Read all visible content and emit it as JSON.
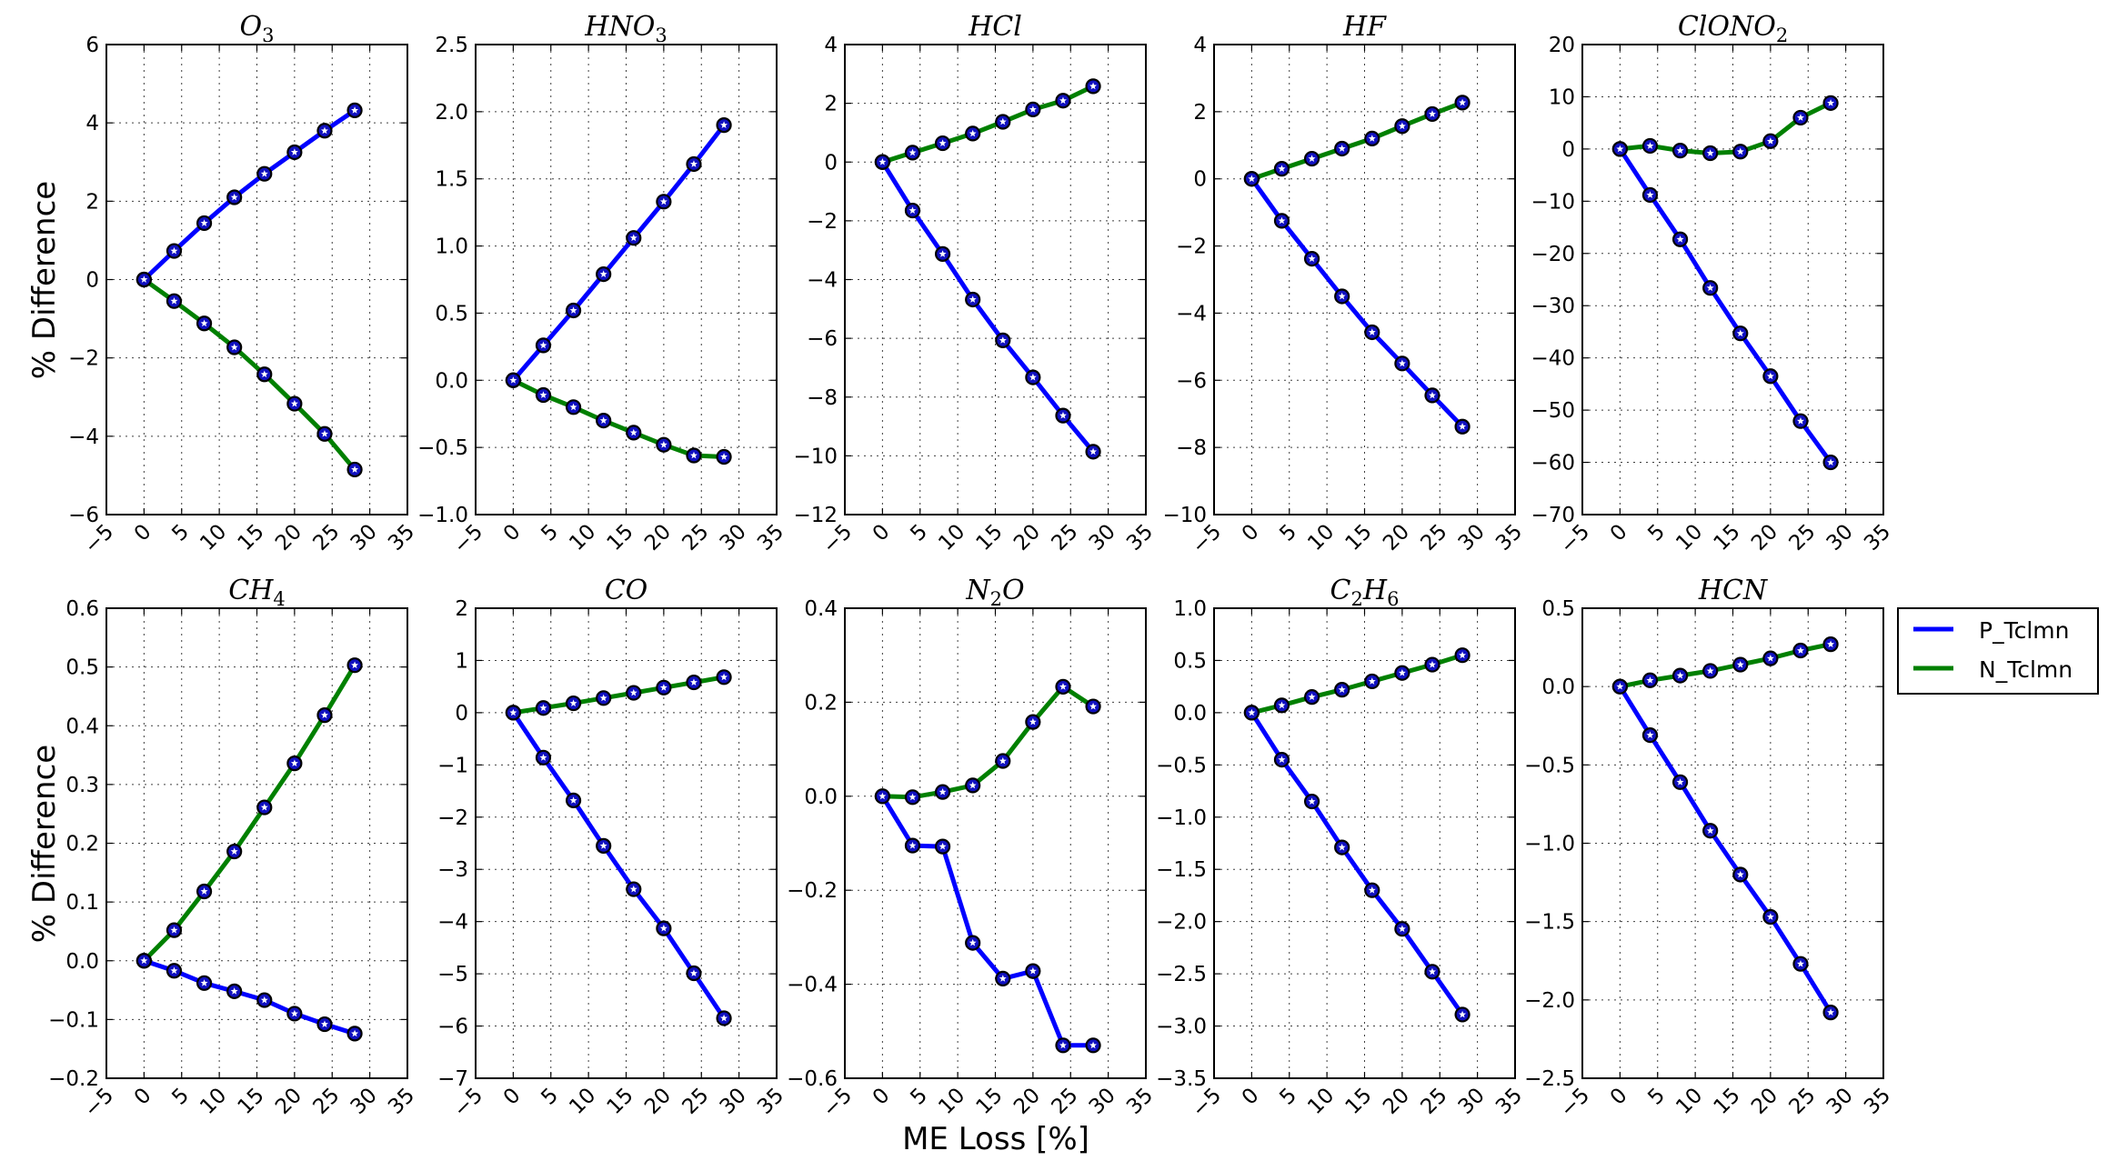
{
  "figure": {
    "ylabel": "% Difference",
    "xlabel": "ME Loss [%]",
    "legend": [
      {
        "label": "P_Tclmn",
        "color": "#0000ff"
      },
      {
        "label": "N_Tclmn",
        "color": "#008000"
      }
    ],
    "legend_placement": "right, beside bottom-right panel"
  },
  "chart_data": [
    {
      "type": "line",
      "title": "O3",
      "title_main": "O",
      "title_sub": "3",
      "x": [
        0,
        4,
        8,
        12,
        16,
        20,
        24,
        28
      ],
      "xlim": [
        -5,
        35
      ],
      "xticks": [
        -5,
        0,
        5,
        10,
        15,
        20,
        25,
        30,
        35
      ],
      "ylim": [
        -6,
        6
      ],
      "yticks": [
        -6,
        -4,
        -2,
        0,
        2,
        4,
        6
      ],
      "ytick_labels": [
        "−6",
        "−4",
        "−2",
        "0",
        "2",
        "4",
        "6"
      ],
      "grid": true,
      "series": [
        {
          "name": "P_Tclmn",
          "values": [
            0,
            0.73,
            1.44,
            2.1,
            2.7,
            3.25,
            3.8,
            4.32
          ]
        },
        {
          "name": "N_Tclmn",
          "values": [
            0,
            -0.55,
            -1.12,
            -1.73,
            -2.42,
            -3.17,
            -3.94,
            -4.85
          ]
        }
      ]
    },
    {
      "type": "line",
      "title": "HNO3",
      "title_main": "HNO",
      "title_sub": "3",
      "x": [
        0,
        4,
        8,
        12,
        16,
        20,
        24,
        28
      ],
      "xlim": [
        -5,
        35
      ],
      "xticks": [
        -5,
        0,
        5,
        10,
        15,
        20,
        25,
        30,
        35
      ],
      "ylim": [
        -1.0,
        2.5
      ],
      "yticks": [
        -1.0,
        -0.5,
        0.0,
        0.5,
        1.0,
        1.5,
        2.0,
        2.5
      ],
      "ytick_labels": [
        "−1.0",
        "−0.5",
        "0.0",
        "0.5",
        "1.0",
        "1.5",
        "2.0",
        "2.5"
      ],
      "grid": true,
      "series": [
        {
          "name": "P_Tclmn",
          "values": [
            0,
            0.26,
            0.52,
            0.79,
            1.06,
            1.33,
            1.61,
            1.9
          ]
        },
        {
          "name": "N_Tclmn",
          "values": [
            0,
            -0.11,
            -0.2,
            -0.3,
            -0.39,
            -0.48,
            -0.56,
            -0.57
          ]
        }
      ]
    },
    {
      "type": "line",
      "title": "HCl",
      "title_main": "HCl",
      "title_sub": "",
      "x": [
        0,
        4,
        8,
        12,
        16,
        20,
        24,
        28
      ],
      "xlim": [
        -5,
        35
      ],
      "xticks": [
        -5,
        0,
        5,
        10,
        15,
        20,
        25,
        30,
        35
      ],
      "ylim": [
        -12,
        4
      ],
      "yticks": [
        -12,
        -10,
        -8,
        -6,
        -4,
        -2,
        0,
        2,
        4
      ],
      "ytick_labels": [
        "−12",
        "−10",
        "−8",
        "−6",
        "−4",
        "−2",
        "0",
        "2",
        "4"
      ],
      "grid": true,
      "series": [
        {
          "name": "P_Tclmn",
          "values": [
            0,
            -1.65,
            -3.13,
            -4.68,
            -6.07,
            -7.33,
            -8.63,
            -9.86
          ]
        },
        {
          "name": "N_Tclmn",
          "values": [
            0,
            0.32,
            0.64,
            0.97,
            1.37,
            1.79,
            2.09,
            2.58
          ]
        }
      ]
    },
    {
      "type": "line",
      "title": "HF",
      "title_main": "HF",
      "title_sub": "",
      "x": [
        0,
        4,
        8,
        12,
        16,
        20,
        24,
        28
      ],
      "xlim": [
        -5,
        35
      ],
      "xticks": [
        -5,
        0,
        5,
        10,
        15,
        20,
        25,
        30,
        35
      ],
      "ylim": [
        -10,
        4
      ],
      "yticks": [
        -10,
        -8,
        -6,
        -4,
        -2,
        0,
        2,
        4
      ],
      "ytick_labels": [
        "−10",
        "−8",
        "−6",
        "−4",
        "−2",
        "0",
        "2",
        "4"
      ],
      "grid": true,
      "series": [
        {
          "name": "P_Tclmn",
          "values": [
            0,
            -1.25,
            -2.38,
            -3.5,
            -4.57,
            -5.5,
            -6.45,
            -7.38
          ]
        },
        {
          "name": "N_Tclmn",
          "values": [
            0,
            0.3,
            0.6,
            0.9,
            1.2,
            1.57,
            1.93,
            2.27
          ]
        }
      ]
    },
    {
      "type": "line",
      "title": "ClONO2",
      "title_main": "ClONO",
      "title_sub": "2",
      "x": [
        0,
        4,
        8,
        12,
        16,
        20,
        24,
        28
      ],
      "xlim": [
        -5,
        35
      ],
      "xticks": [
        -5,
        0,
        5,
        10,
        15,
        20,
        25,
        30,
        35
      ],
      "ylim": [
        -70,
        20
      ],
      "yticks": [
        -70,
        -60,
        -50,
        -40,
        -30,
        -20,
        -10,
        0,
        10,
        20
      ],
      "ytick_labels": [
        "−70",
        "−60",
        "−50",
        "−40",
        "−30",
        "−20",
        "−10",
        "0",
        "10",
        "20"
      ],
      "grid": true,
      "series": [
        {
          "name": "P_Tclmn",
          "values": [
            0,
            -8.8,
            -17.3,
            -26.6,
            -35.3,
            -43.5,
            -52.1,
            -60.0
          ]
        },
        {
          "name": "N_Tclmn",
          "values": [
            0,
            0.6,
            -0.3,
            -0.8,
            -0.5,
            1.5,
            6.0,
            8.8
          ]
        }
      ]
    },
    {
      "type": "line",
      "title": "CH4",
      "title_main": "CH",
      "title_sub": "4",
      "x": [
        0,
        4,
        8,
        12,
        16,
        20,
        24,
        28
      ],
      "xlim": [
        -5,
        35
      ],
      "xticks": [
        -5,
        0,
        5,
        10,
        15,
        20,
        25,
        30,
        35
      ],
      "ylim": [
        -0.2,
        0.6
      ],
      "yticks": [
        -0.2,
        -0.1,
        0.0,
        0.1,
        0.2,
        0.3,
        0.4,
        0.5,
        0.6
      ],
      "ytick_labels": [
        "−0.2",
        "−0.1",
        "0.0",
        "0.1",
        "0.2",
        "0.3",
        "0.4",
        "0.5",
        "0.6"
      ],
      "grid": true,
      "series": [
        {
          "name": "P_Tclmn",
          "values": [
            0,
            -0.017,
            -0.038,
            -0.052,
            -0.067,
            -0.09,
            -0.108,
            -0.124
          ]
        },
        {
          "name": "N_Tclmn",
          "values": [
            0,
            0.052,
            0.118,
            0.186,
            0.261,
            0.336,
            0.418,
            0.503
          ]
        }
      ]
    },
    {
      "type": "line",
      "title": "CO",
      "title_main": "CO",
      "title_sub": "",
      "x": [
        0,
        4,
        8,
        12,
        16,
        20,
        24,
        28
      ],
      "xlim": [
        -5,
        35
      ],
      "xticks": [
        -5,
        0,
        5,
        10,
        15,
        20,
        25,
        30,
        35
      ],
      "ylim": [
        -7,
        2
      ],
      "yticks": [
        -7,
        -6,
        -5,
        -4,
        -3,
        -2,
        -1,
        0,
        1,
        2
      ],
      "ytick_labels": [
        "−7",
        "−6",
        "−5",
        "−4",
        "−3",
        "−2",
        "−1",
        "0",
        "1",
        "2"
      ],
      "grid": true,
      "series": [
        {
          "name": "P_Tclmn",
          "values": [
            0,
            -0.86,
            -1.68,
            -2.55,
            -3.38,
            -4.13,
            -4.99,
            -5.85
          ]
        },
        {
          "name": "N_Tclmn",
          "values": [
            0,
            0.09,
            0.18,
            0.28,
            0.38,
            0.48,
            0.58,
            0.68
          ]
        }
      ]
    },
    {
      "type": "line",
      "title": "N2O",
      "title_main": "N",
      "title_sub": "2",
      "title_after": "O",
      "x": [
        0,
        4,
        8,
        12,
        16,
        20,
        24,
        28
      ],
      "xlim": [
        -5,
        35
      ],
      "xticks": [
        -5,
        0,
        5,
        10,
        15,
        20,
        25,
        30,
        35
      ],
      "ylim": [
        -0.6,
        0.4
      ],
      "yticks": [
        -0.6,
        -0.4,
        -0.2,
        0.0,
        0.2,
        0.4
      ],
      "ytick_labels": [
        "−0.6",
        "−0.4",
        "−0.2",
        "0.0",
        "0.2",
        "0.4"
      ],
      "grid": true,
      "series": [
        {
          "name": "P_Tclmn",
          "values": [
            0,
            -0.105,
            -0.107,
            -0.312,
            -0.388,
            -0.372,
            -0.53,
            -0.53
          ]
        },
        {
          "name": "N_Tclmn",
          "values": [
            0,
            -0.002,
            0.009,
            0.023,
            0.075,
            0.158,
            0.233,
            0.191
          ]
        }
      ]
    },
    {
      "type": "line",
      "title": "C2H6",
      "title_main": "C",
      "title_sub": "2",
      "title_after": "H",
      "title_sub2": "6",
      "x": [
        0,
        4,
        8,
        12,
        16,
        20,
        24,
        28
      ],
      "xlim": [
        -5,
        35
      ],
      "xticks": [
        -5,
        0,
        5,
        10,
        15,
        20,
        25,
        30,
        35
      ],
      "ylim": [
        -3.5,
        1.0
      ],
      "yticks": [
        -3.5,
        -3.0,
        -2.5,
        -2.0,
        -1.5,
        -1.0,
        -0.5,
        0.0,
        0.5,
        1.0
      ],
      "ytick_labels": [
        "−3.5",
        "−3.0",
        "−2.5",
        "−2.0",
        "−1.5",
        "−1.0",
        "−0.5",
        "0.0",
        "0.5",
        "1.0"
      ],
      "grid": true,
      "series": [
        {
          "name": "P_Tclmn",
          "values": [
            0,
            -0.45,
            -0.85,
            -1.29,
            -1.7,
            -2.07,
            -2.48,
            -2.89
          ]
        },
        {
          "name": "N_Tclmn",
          "values": [
            0,
            0.07,
            0.15,
            0.22,
            0.3,
            0.38,
            0.46,
            0.55
          ]
        }
      ]
    },
    {
      "type": "line",
      "title": "HCN",
      "title_main": "HCN",
      "title_sub": "",
      "x": [
        0,
        4,
        8,
        12,
        16,
        20,
        24,
        28
      ],
      "xlim": [
        -5,
        35
      ],
      "xticks": [
        -5,
        0,
        5,
        10,
        15,
        20,
        25,
        30,
        35
      ],
      "ylim": [
        -2.5,
        0.5
      ],
      "yticks": [
        -2.5,
        -2.0,
        -1.5,
        -1.0,
        -0.5,
        0.0,
        0.5
      ],
      "ytick_labels": [
        "−2.5",
        "−2.0",
        "−1.5",
        "−1.0",
        "−0.5",
        "0.0",
        "0.5"
      ],
      "grid": true,
      "series": [
        {
          "name": "P_Tclmn",
          "values": [
            0,
            -0.31,
            -0.61,
            -0.92,
            -1.2,
            -1.47,
            -1.77,
            -2.08
          ]
        },
        {
          "name": "N_Tclmn",
          "values": [
            0,
            0.04,
            0.07,
            0.1,
            0.14,
            0.18,
            0.23,
            0.27
          ]
        }
      ]
    }
  ]
}
